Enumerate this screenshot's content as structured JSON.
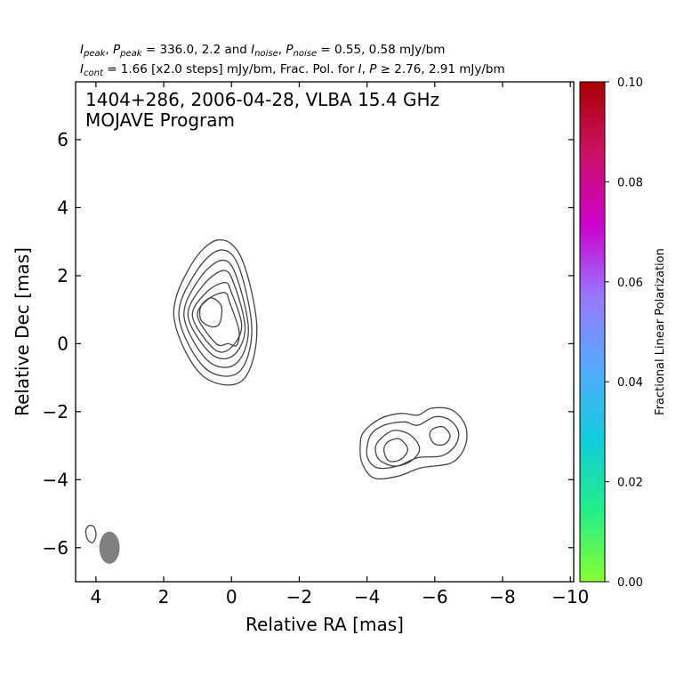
{
  "header": {
    "line1": {
      "i_peak_sym": "I",
      "i_peak_sub": "peak",
      "p_peak_sym": "P",
      "p_peak_sub": "peak",
      "peak_values": "= 336.0, 2.2 and",
      "i_noise_sym": "I",
      "i_noise_sub": "noise",
      "p_noise_sym": "P",
      "p_noise_sub": "noise",
      "noise_values": "= 0.55, 0.58 mJy/bm"
    },
    "line2": {
      "i_cont_sym": "I",
      "i_cont_sub": "cont",
      "cont_text": "= 1.66 [x2.0 steps] mJy/bm, Frac. Pol. for",
      "pol_sym_i": "I",
      "pol_sym_p": "P",
      "pol_threshold": "≥ 2.76, 2.91 mJy/bm"
    }
  },
  "chart_data": {
    "type": "contour",
    "title_line1": "1404+286, 2006-04-28, VLBA 15.4 GHz",
    "title_line2": "MOJAVE Program",
    "xlabel": "Relative RA [mas]",
    "ylabel": "Relative Dec [mas]",
    "xlim": [
      4.6,
      -10.1
    ],
    "ylim": [
      -7.0,
      7.7
    ],
    "xticks": [
      4,
      2,
      0,
      -2,
      -4,
      -6,
      -8,
      -10
    ],
    "xtick_labels": [
      "4",
      "2",
      "0",
      "−2",
      "−4",
      "−6",
      "−8",
      "−10"
    ],
    "yticks": [
      6,
      4,
      2,
      0,
      -2,
      -4,
      -6
    ],
    "ytick_labels": [
      "6",
      "4",
      "2",
      "0",
      "−2",
      "−4",
      "−6"
    ],
    "contour_color": "#444444",
    "beam": {
      "x": 3.6,
      "y": -6.0,
      "width": 0.6,
      "height": 0.95,
      "color": "#808080"
    },
    "components": [
      {
        "name": "core",
        "contours": [
          {
            "cx": 0.5,
            "cy": 0.75,
            "rx_l": 1.7,
            "rx_r": 0.85,
            "ry_t": 2.3,
            "ry_b": 2.15,
            "pts": [
              [
                0.4,
                3.05
              ],
              [
                -0.3,
                2.5
              ],
              [
                -0.75,
                0.4
              ],
              [
                -0.3,
                -1.1
              ],
              [
                0.9,
                -0.9
              ],
              [
                1.7,
                0.8
              ],
              [
                1.2,
                2.3
              ]
            ]
          },
          {
            "cx": 0.5,
            "cy": 0.75,
            "pts": [
              [
                0.35,
                2.75
              ],
              [
                -0.2,
                2.3
              ],
              [
                -0.6,
                0.4
              ],
              [
                -0.2,
                -0.85
              ],
              [
                0.8,
                -0.7
              ],
              [
                1.55,
                0.8
              ],
              [
                1.05,
                2.1
              ]
            ]
          },
          {
            "cx": 0.5,
            "cy": 0.75,
            "pts": [
              [
                0.3,
                2.45
              ],
              [
                -0.12,
                2.05
              ],
              [
                -0.5,
                0.4
              ],
              [
                -0.12,
                -0.6
              ],
              [
                0.7,
                -0.5
              ],
              [
                1.4,
                0.8
              ],
              [
                0.95,
                1.9
              ]
            ]
          },
          {
            "cx": 0.5,
            "cy": 0.75,
            "pts": [
              [
                0.25,
                2.15
              ],
              [
                -0.06,
                1.8
              ],
              [
                -0.4,
                0.45
              ],
              [
                -0.05,
                -0.35
              ],
              [
                0.6,
                -0.3
              ],
              [
                1.28,
                0.8
              ],
              [
                0.85,
                1.7
              ]
            ]
          },
          {
            "cx": 0.5,
            "cy": 0.75,
            "pts": [
              [
                0.2,
                1.8
              ],
              [
                0.0,
                1.5
              ],
              [
                -0.3,
                0.5
              ],
              [
                0.05,
                -0.15
              ],
              [
                0.52,
                -0.15
              ],
              [
                1.15,
                0.8
              ],
              [
                0.75,
                1.5
              ]
            ]
          },
          {
            "cx": 0.5,
            "cy": 0.75,
            "pts": [
              [
                0.2,
                1.5
              ],
              [
                0.05,
                1.2
              ],
              [
                -0.22,
                0.4
              ],
              [
                -0.15,
                -0.05
              ],
              [
                0.1,
                0.0
              ],
              [
                0.45,
                0.0
              ],
              [
                1.0,
                0.8
              ],
              [
                0.7,
                1.3
              ]
            ]
          },
          {
            "cx": 0.6,
            "cy": 0.95,
            "pts": [
              [
                0.6,
                1.35
              ],
              [
                0.3,
                1.1
              ],
              [
                0.35,
                0.6
              ],
              [
                0.6,
                0.5
              ],
              [
                0.9,
                0.7
              ],
              [
                0.9,
                1.1
              ]
            ]
          }
        ]
      },
      {
        "name": "jet-feature",
        "contours": [
          {
            "pts": [
              [
                -3.9,
                -2.6
              ],
              [
                -4.4,
                -2.2
              ],
              [
                -5.0,
                -2.05
              ],
              [
                -5.5,
                -2.1
              ],
              [
                -5.9,
                -1.9
              ],
              [
                -6.5,
                -1.95
              ],
              [
                -6.9,
                -2.4
              ],
              [
                -6.9,
                -3.0
              ],
              [
                -6.5,
                -3.5
              ],
              [
                -5.6,
                -3.65
              ],
              [
                -4.9,
                -3.9
              ],
              [
                -4.2,
                -3.95
              ],
              [
                -3.85,
                -3.5
              ],
              [
                -3.8,
                -3.0
              ]
            ]
          },
          {
            "pts": [
              [
                -4.1,
                -2.7
              ],
              [
                -4.5,
                -2.4
              ],
              [
                -5.1,
                -2.3
              ],
              [
                -5.5,
                -2.4
              ],
              [
                -6.0,
                -2.15
              ],
              [
                -6.45,
                -2.25
              ],
              [
                -6.7,
                -2.6
              ],
              [
                -6.6,
                -3.0
              ],
              [
                -6.2,
                -3.3
              ],
              [
                -5.5,
                -3.35
              ],
              [
                -4.9,
                -3.6
              ],
              [
                -4.3,
                -3.65
              ],
              [
                -4.0,
                -3.3
              ]
            ]
          },
          {
            "pts": [
              [
                -4.4,
                -2.8
              ],
              [
                -4.8,
                -2.55
              ],
              [
                -5.3,
                -2.7
              ],
              [
                -5.55,
                -3.1
              ],
              [
                -5.3,
                -3.45
              ],
              [
                -4.8,
                -3.6
              ],
              [
                -4.35,
                -3.4
              ],
              [
                -4.25,
                -3.05
              ]
            ]
          },
          {
            "pts": [
              [
                -4.6,
                -2.9
              ],
              [
                -4.95,
                -2.8
              ],
              [
                -5.2,
                -3.1
              ],
              [
                -5.0,
                -3.4
              ],
              [
                -4.65,
                -3.45
              ],
              [
                -4.5,
                -3.15
              ]
            ]
          },
          {
            "pts": [
              [
                -5.95,
                -2.5
              ],
              [
                -6.25,
                -2.45
              ],
              [
                -6.45,
                -2.7
              ],
              [
                -6.3,
                -2.95
              ],
              [
                -6.0,
                -2.95
              ],
              [
                -5.85,
                -2.7
              ]
            ]
          }
        ]
      },
      {
        "name": "small-blob",
        "contours": [
          {
            "pts": [
              [
                4.2,
                -5.35
              ],
              [
                4.05,
                -5.4
              ],
              [
                4.0,
                -5.65
              ],
              [
                4.1,
                -5.85
              ],
              [
                4.25,
                -5.75
              ],
              [
                4.3,
                -5.5
              ]
            ]
          }
        ]
      }
    ],
    "colorbar": {
      "label": "Fractional Linear Polarization",
      "min": 0.0,
      "max": 0.1,
      "ticks": [
        0.0,
        0.02,
        0.04,
        0.06,
        0.08,
        0.1
      ],
      "tick_labels": [
        "0.00",
        "0.02",
        "0.04",
        "0.06",
        "0.08",
        "0.10"
      ],
      "colors": [
        "#88ff33",
        "#22ee88",
        "#11ccdd",
        "#55aaff",
        "#9977ff",
        "#cc00cc",
        "#cc1166",
        "#aa0000"
      ]
    }
  }
}
